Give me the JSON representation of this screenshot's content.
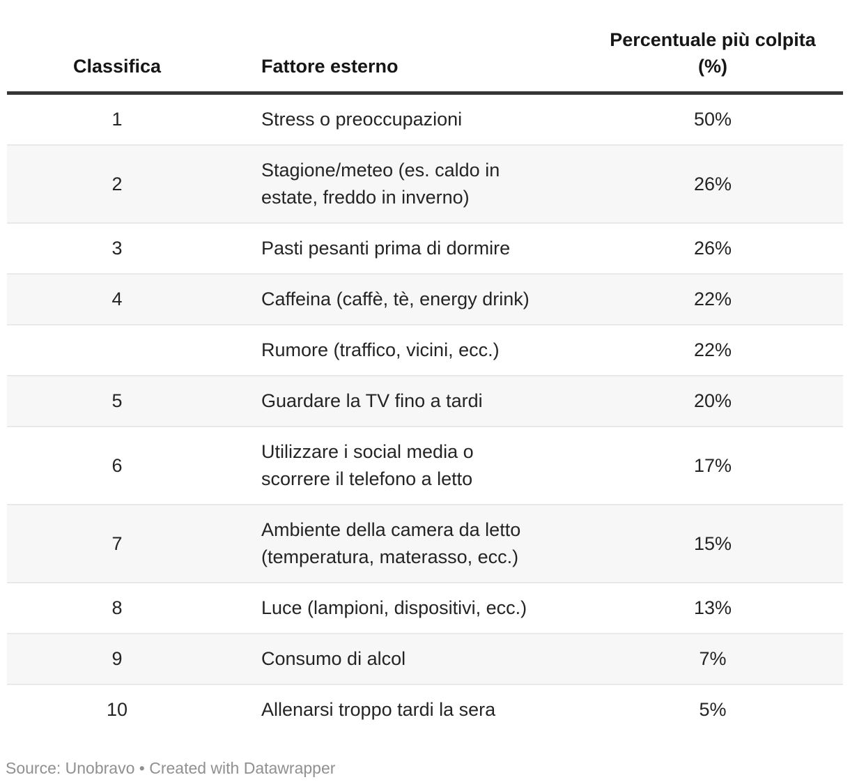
{
  "table": {
    "columns": [
      {
        "label": "Classifica"
      },
      {
        "label": "Fattore esterno"
      },
      {
        "label": "Percentuale più colpita\n(%)"
      }
    ],
    "rows": [
      {
        "rank": "1",
        "factor": "Stress o preoccupazioni",
        "pct": "50%"
      },
      {
        "rank": "2",
        "factor": "Stagione/meteo (es. caldo in\nestate, freddo in inverno)",
        "pct": "26%"
      },
      {
        "rank": "3",
        "factor": "Pasti pesanti prima di dormire",
        "pct": "26%"
      },
      {
        "rank": "4",
        "factor": "Caffeina (caffè, tè, energy drink)",
        "pct": "22%"
      },
      {
        "rank": "",
        "factor": "Rumore (traffico, vicini, ecc.)",
        "pct": "22%"
      },
      {
        "rank": "5",
        "factor": "Guardare la TV fino a tardi",
        "pct": "20%"
      },
      {
        "rank": "6",
        "factor": "Utilizzare i social media o\nscorrere il telefono a letto",
        "pct": "17%"
      },
      {
        "rank": "7",
        "factor": "Ambiente della camera da letto\n(temperatura, materasso, ecc.)",
        "pct": "15%"
      },
      {
        "rank": "8",
        "factor": "Luce (lampioni, dispositivi, ecc.)",
        "pct": "13%"
      },
      {
        "rank": "9",
        "factor": "Consumo di alcol",
        "pct": "7%"
      },
      {
        "rank": "10",
        "factor": "Allenarsi troppo tardi la sera",
        "pct": "5%"
      }
    ]
  },
  "footer": {
    "source_line": "Source: Unobravo • Created with Datawrapper"
  },
  "colors": {
    "header_rule": "#363636",
    "row_stripe": "#f7f7f7",
    "row_separator": "#e9e9e9",
    "text_color": "#242424",
    "header_text": "#161616",
    "source_text": "#909090",
    "bg": "#ffffff"
  },
  "chart_data": {
    "type": "table",
    "title": "",
    "columns": [
      "Classifica",
      "Fattore esterno",
      "Percentuale più colpita (%)"
    ],
    "categories": [
      "Stress o preoccupazioni",
      "Stagione/meteo (es. caldo in estate, freddo in inverno)",
      "Pasti pesanti prima di dormire",
      "Caffeina (caffè, tè, energy drink)",
      "Rumore (traffico, vicini, ecc.)",
      "Guardare la TV fino a tardi",
      "Utilizzare i social media o scorrere il telefono a letto",
      "Ambiente della camera da letto (temperatura, materasso, ecc.)",
      "Luce (lampioni, dispositivi, ecc.)",
      "Consumo di alcol",
      "Allenarsi troppo tardi la sera"
    ],
    "ranks": [
      1,
      2,
      3,
      4,
      null,
      5,
      6,
      7,
      8,
      9,
      10
    ],
    "values": [
      50,
      26,
      26,
      22,
      22,
      20,
      17,
      15,
      13,
      7,
      5
    ],
    "value_unit": "%",
    "layout": {
      "striped_rows": true,
      "stripe_pattern": "even-rows-gray"
    },
    "source": "Unobravo",
    "attribution": "Created with Datawrapper"
  }
}
